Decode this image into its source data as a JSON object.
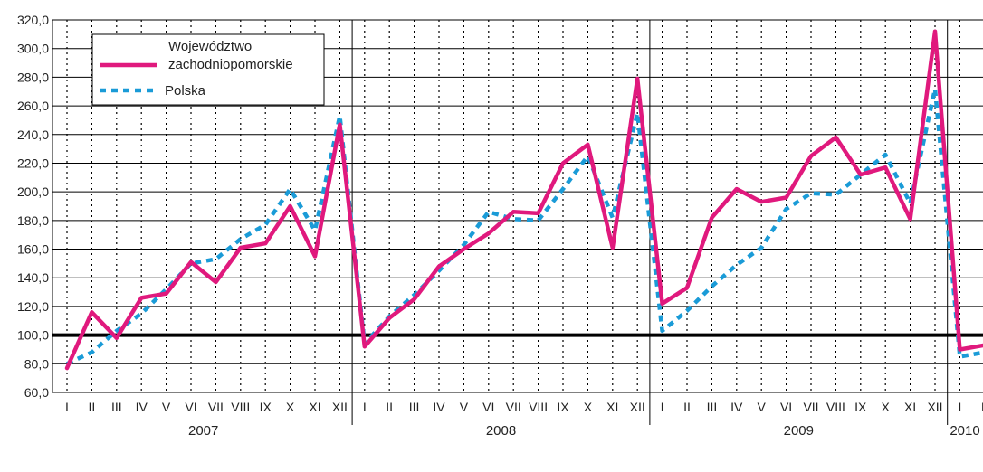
{
  "chart_data": {
    "type": "line",
    "title": "",
    "xlabel": "",
    "ylabel": "",
    "ylim": [
      60,
      320
    ],
    "yticks": [
      60,
      80,
      100,
      120,
      140,
      160,
      180,
      200,
      220,
      240,
      260,
      280,
      300,
      320
    ],
    "ytick_labels": [
      "60,0",
      "80,0",
      "100,0",
      "120,0",
      "140,0",
      "160,0",
      "180,0",
      "200,0",
      "220,0",
      "240,0",
      "260,0",
      "280,0",
      "300,0",
      "320,0"
    ],
    "reference_line": 100,
    "grid": true,
    "legend_position": "top-left",
    "categories": [
      "I",
      "II",
      "III",
      "IV",
      "V",
      "VI",
      "VII",
      "VIII",
      "IX",
      "X",
      "XI",
      "XII",
      "I",
      "II",
      "III",
      "IV",
      "V",
      "VI",
      "VII",
      "VIII",
      "IX",
      "X",
      "XI",
      "XII",
      "I",
      "II",
      "III",
      "IV",
      "V",
      "VI",
      "VII",
      "VIII",
      "IX",
      "X",
      "XI",
      "XII",
      "I",
      "II"
    ],
    "years": [
      {
        "label": "2007",
        "start": 0,
        "count": 12
      },
      {
        "label": "2008",
        "start": 12,
        "count": 12
      },
      {
        "label": "2009",
        "start": 24,
        "count": 12
      },
      {
        "label": "2010",
        "start": 36,
        "count": 2
      }
    ],
    "series": [
      {
        "name": "Województwo zachodniopomorskie",
        "legend_lines": [
          "Województwo",
          "zachodniopomorskie"
        ],
        "color": "#e0197d",
        "style": "solid",
        "values": [
          77,
          116,
          98,
          126,
          129,
          151,
          137,
          161,
          164,
          190,
          155,
          247,
          92,
          112,
          125,
          148,
          160,
          171,
          186,
          185,
          220,
          233,
          161,
          279,
          122,
          133,
          182,
          202,
          193,
          196,
          225,
          238,
          212,
          217,
          181,
          312,
          90,
          93
        ]
      },
      {
        "name": "Polska",
        "legend_lines": [
          "Polska"
        ],
        "color": "#1a9bd7",
        "style": "dashed",
        "values": [
          80,
          88,
          103,
          115,
          132,
          150,
          153,
          167,
          177,
          202,
          173,
          253,
          94,
          113,
          128,
          145,
          163,
          186,
          181,
          180,
          202,
          225,
          182,
          255,
          103,
          117,
          134,
          149,
          161,
          188,
          199,
          198,
          212,
          226,
          192,
          272,
          85,
          88
        ]
      }
    ]
  }
}
